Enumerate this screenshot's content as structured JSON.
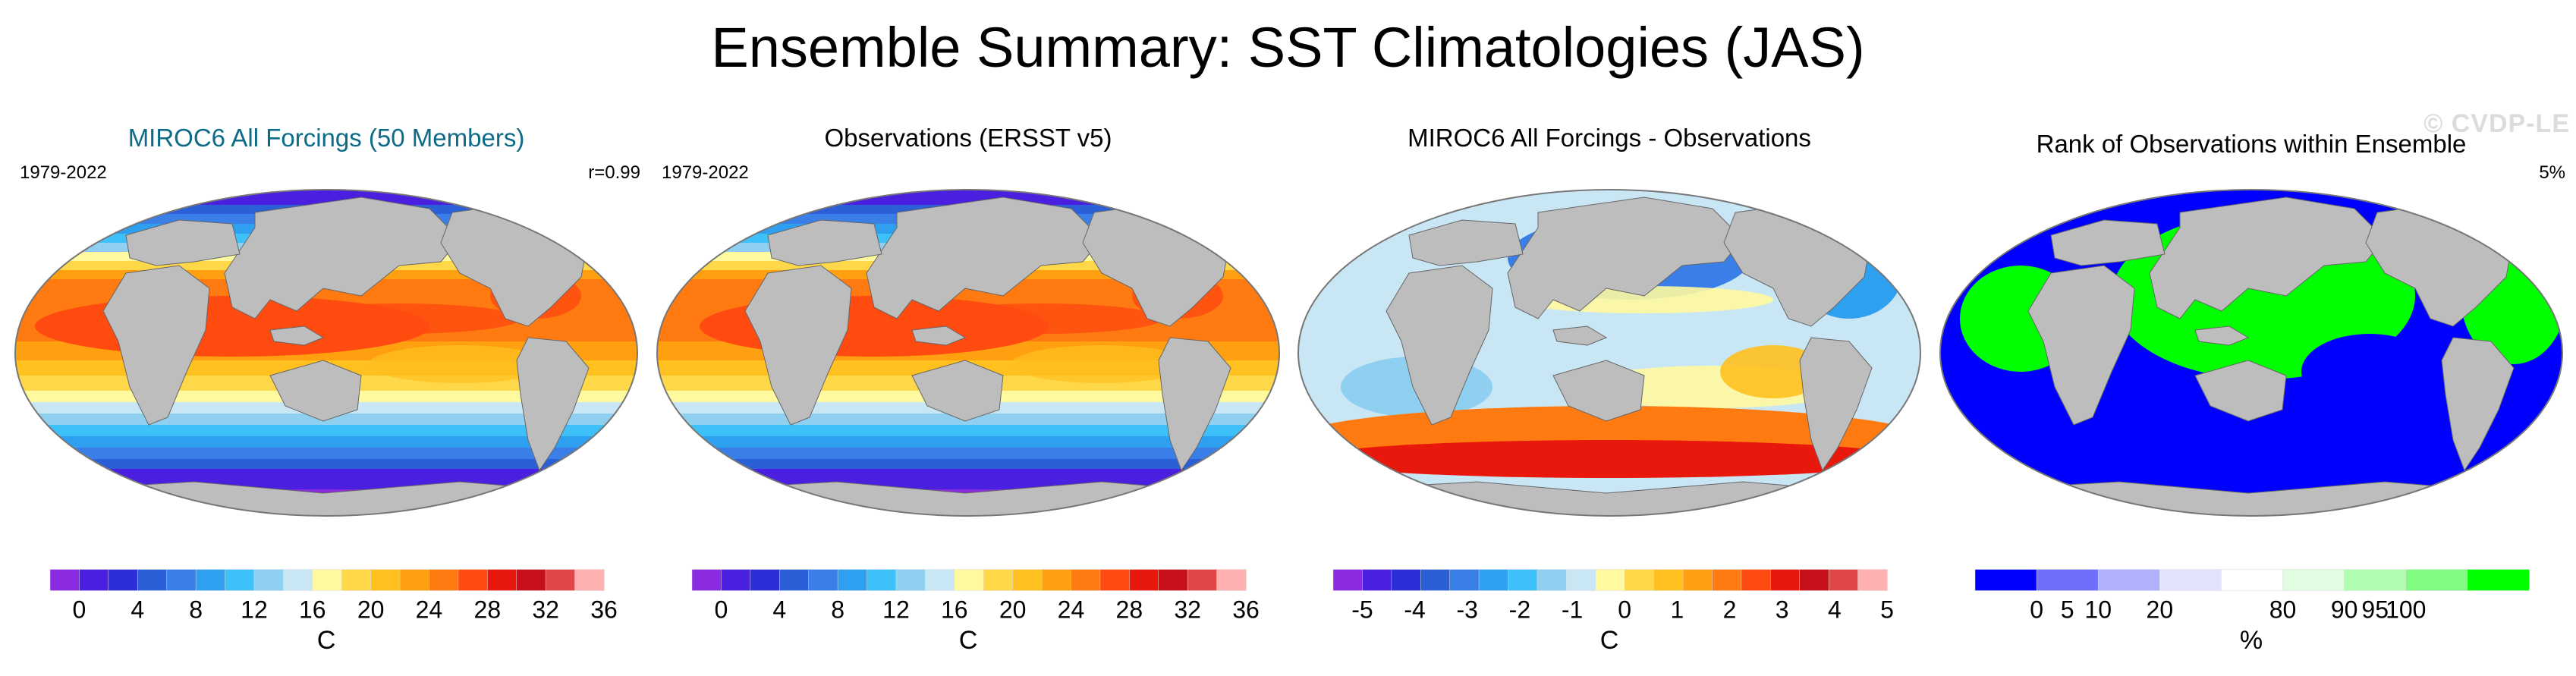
{
  "title": "Ensemble Summary: SST Climatologies (JAS)",
  "watermark": "© CVDP-LE",
  "panels": [
    {
      "title": "MIROC6 All Forcings (50 Members)",
      "title_color": "#0d6b87",
      "left_sub": "1979-2022",
      "right_sub": "r=0.99",
      "kind": "sst",
      "unit": "C",
      "colorbar": {
        "colors": [
          "#8a2be2",
          "#4b1fe0",
          "#2c2fd8",
          "#2b5fd8",
          "#3a7fe8",
          "#2f9ff0",
          "#3ec0f8",
          "#8fd0f0",
          "#c9e6f5",
          "#fffaa0",
          "#ffd84a",
          "#ffc020",
          "#ffa010",
          "#ff7a10",
          "#ff4a10",
          "#e8180c",
          "#c8101a",
          "#e04848",
          "#ffb0b0"
        ],
        "ticks": [
          "0",
          "4",
          "8",
          "12",
          "16",
          "20",
          "24",
          "28",
          "32",
          "36"
        ],
        "tick_slots": [
          1,
          3,
          5,
          7,
          9,
          11,
          13,
          15,
          17,
          19
        ]
      }
    },
    {
      "title": "Observations (ERSST v5)",
      "title_color": "#000000",
      "left_sub": "1979-2022",
      "right_sub": "",
      "kind": "sst",
      "unit": "C",
      "colorbar": {
        "colors": [
          "#8a2be2",
          "#4b1fe0",
          "#2c2fd8",
          "#2b5fd8",
          "#3a7fe8",
          "#2f9ff0",
          "#3ec0f8",
          "#8fd0f0",
          "#c9e6f5",
          "#fffaa0",
          "#ffd84a",
          "#ffc020",
          "#ffa010",
          "#ff7a10",
          "#ff4a10",
          "#e8180c",
          "#c8101a",
          "#e04848",
          "#ffb0b0"
        ],
        "ticks": [
          "0",
          "4",
          "8",
          "12",
          "16",
          "20",
          "24",
          "28",
          "32",
          "36"
        ],
        "tick_slots": [
          1,
          3,
          5,
          7,
          9,
          11,
          13,
          15,
          17,
          19
        ]
      }
    },
    {
      "title": "MIROC6 All Forcings - Observations",
      "title_color": "#000000",
      "left_sub": "",
      "right_sub": "",
      "kind": "diff",
      "unit": "C",
      "colorbar": {
        "colors": [
          "#8a2be2",
          "#4b1fe0",
          "#2c2fd8",
          "#2b5fd8",
          "#3a7fe8",
          "#2f9ff0",
          "#3ec0f8",
          "#8fd0f0",
          "#c9e6f5",
          "#fffaa0",
          "#ffd84a",
          "#ffc020",
          "#ffa010",
          "#ff7a10",
          "#ff4a10",
          "#e8180c",
          "#c8101a",
          "#e04848",
          "#ffb0b0"
        ],
        "ticks": [
          "-5",
          "-4",
          "-3",
          "-2",
          "-1",
          "0",
          "1",
          "2",
          "3",
          "4",
          "5"
        ],
        "tick_slots": [
          1,
          2.8,
          4.6,
          6.4,
          8.2,
          10,
          11.8,
          13.6,
          15.4,
          17.2,
          19
        ]
      }
    },
    {
      "title": "Rank of Observations within Ensemble",
      "title_color": "#000000",
      "left_sub": "",
      "right_sub": "5%",
      "kind": "rank",
      "unit": "%",
      "colorbar": {
        "colors": [
          "#0000ff",
          "#6f6ffc",
          "#b0b0fc",
          "#e2e2fc",
          "#ffffff",
          "#e2fce2",
          "#b0fcb0",
          "#80fc80",
          "#00ff00"
        ],
        "ticks": [
          "0",
          "5",
          "10",
          "20",
          "80",
          "90",
          "95",
          "100"
        ],
        "tick_slots": [
          1,
          1.5,
          2,
          3,
          5,
          6,
          6.5,
          7
        ]
      }
    }
  ],
  "panel_positions": [
    0,
    1,
    2,
    3
  ]
}
